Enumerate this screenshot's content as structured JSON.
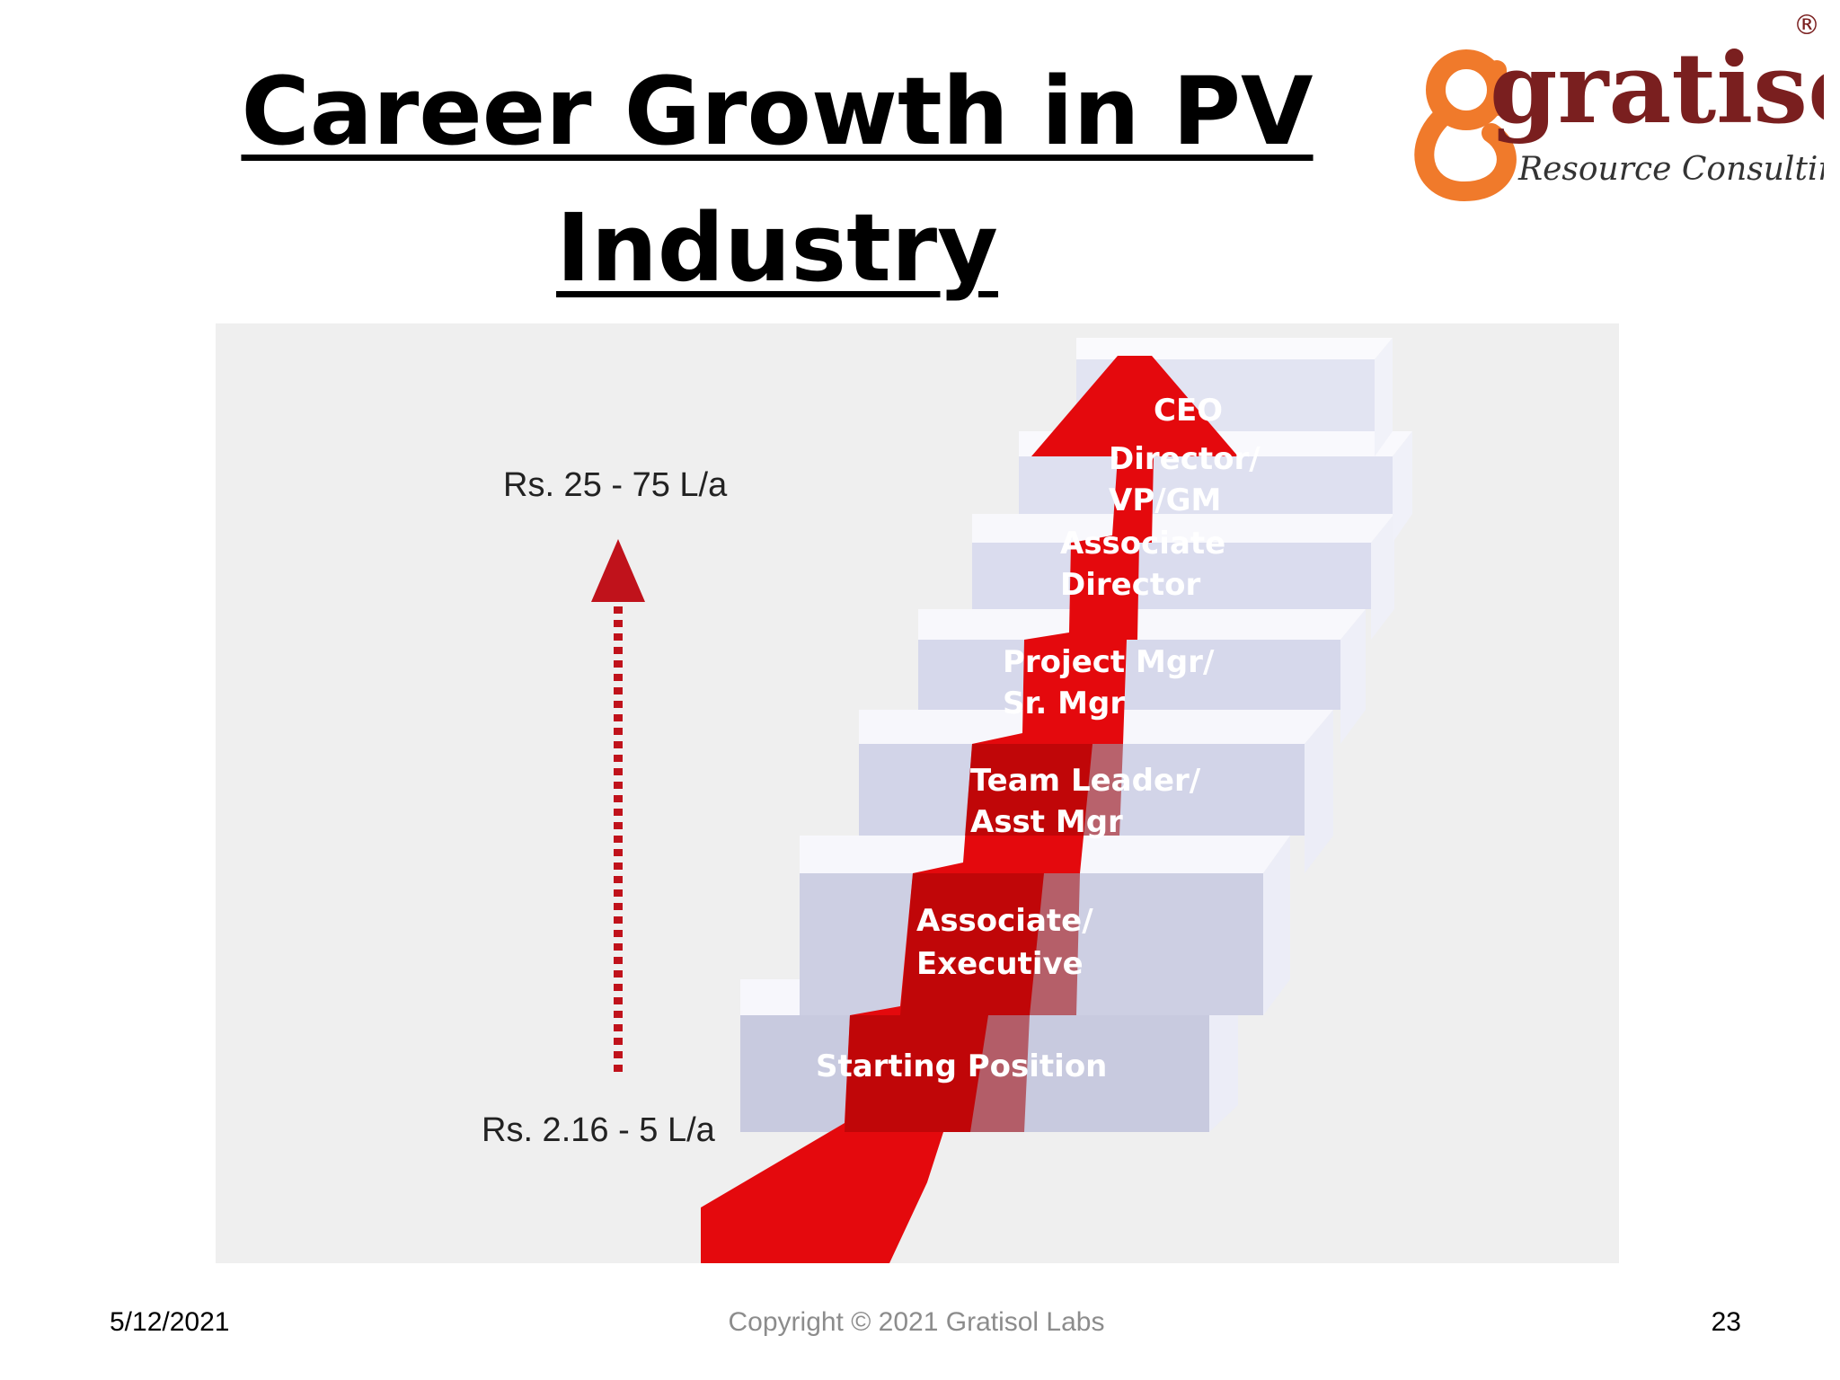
{
  "slide": {
    "title_line1": "Career Growth in PV",
    "title_line2": "Industry"
  },
  "logo": {
    "brand": "gratisol",
    "tagline": "Resource Consulting",
    "registered_mark": "®",
    "brand_color": "#f07a2b",
    "wordmark_color": "#7a1f1f"
  },
  "diagram": {
    "salary_top": "Rs. 25 - 75 L/a",
    "salary_bottom": "Rs. 2.16 - 5 L/a",
    "carpet_color": "#e4090d",
    "step_color": "#d7d9ee",
    "levels": [
      {
        "line1": "Starting Position",
        "line2": ""
      },
      {
        "line1": "Associate/",
        "line2": "Executive"
      },
      {
        "line1": "Team Leader/",
        "line2": "Asst Mgr"
      },
      {
        "line1": "Project Mgr/",
        "line2": "Sr. Mgr"
      },
      {
        "line1": "Associate",
        "line2": "Director"
      },
      {
        "line1": "Director/",
        "line2": "VP/GM"
      },
      {
        "line1": "CEO",
        "line2": ""
      }
    ]
  },
  "footer": {
    "date": "5/12/2021",
    "copyright": "Copyright © 2021 Gratisol Labs",
    "page_number": "23"
  }
}
